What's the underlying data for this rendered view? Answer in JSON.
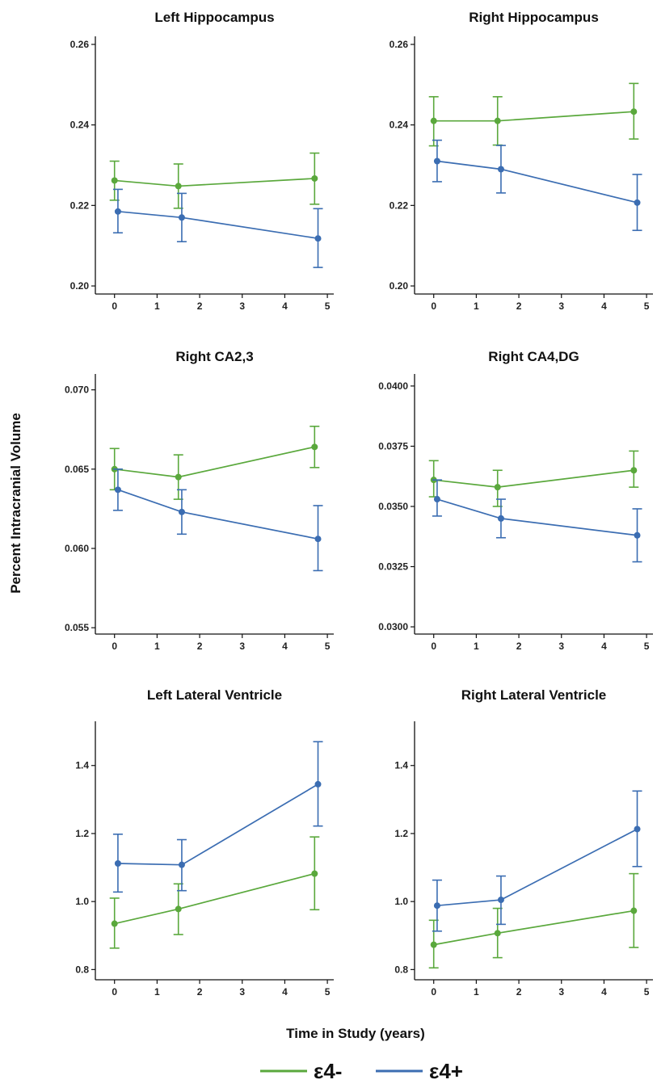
{
  "chart_data": {
    "type": "line",
    "ylabel": "Percent Intracranial Volume",
    "xlabel": "Time in Study (years)",
    "legend": {
      "placement": "bottom",
      "entries": [
        {
          "label": "ε4-",
          "color": "#5aa83c"
        },
        {
          "label": "ε4+",
          "color": "#3b6db2"
        }
      ]
    },
    "panels": [
      {
        "title": "Left Hippocampus",
        "ylim": [
          0.198,
          0.262
        ],
        "yticks": [
          "0.20",
          "0.22",
          "0.24",
          "0.26"
        ],
        "ytick_values": [
          0.2,
          0.22,
          0.24,
          0.26
        ],
        "xlim": [
          -0.45,
          5.15
        ],
        "xticks": [
          "0",
          "1",
          "2",
          "3",
          "4",
          "5"
        ],
        "series": [
          {
            "name": "ε4-",
            "color": "#5aa83c",
            "x": [
              0,
              1.5,
              4.7
            ],
            "y": [
              0.2262,
              0.2248,
              0.2267
            ],
            "lower": [
              0.2213,
              0.2193,
              0.2203
            ],
            "upper": [
              0.231,
              0.2303,
              0.233
            ]
          },
          {
            "name": "ε4+",
            "color": "#3b6db2",
            "x": [
              0.08,
              1.58,
              4.78
            ],
            "y": [
              0.2185,
              0.217,
              0.2118
            ],
            "lower": [
              0.2132,
              0.211,
              0.2046
            ],
            "upper": [
              0.224,
              0.223,
              0.2192
            ]
          }
        ]
      },
      {
        "title": "Right Hippocampus",
        "ylim": [
          0.198,
          0.262
        ],
        "yticks": [
          "0.20",
          "0.22",
          "0.24",
          "0.26"
        ],
        "ytick_values": [
          0.2,
          0.22,
          0.24,
          0.26
        ],
        "xlim": [
          -0.45,
          5.15
        ],
        "xticks": [
          "0",
          "1",
          "2",
          "3",
          "4",
          "5"
        ],
        "series": [
          {
            "name": "ε4-",
            "color": "#5aa83c",
            "x": [
              0,
              1.5,
              4.7
            ],
            "y": [
              0.241,
              0.241,
              0.2433
            ],
            "lower": [
              0.2348,
              0.235,
              0.2365
            ],
            "upper": [
              0.247,
              0.247,
              0.2503
            ]
          },
          {
            "name": "ε4+",
            "color": "#3b6db2",
            "x": [
              0.08,
              1.58,
              4.78
            ],
            "y": [
              0.231,
              0.229,
              0.2207
            ],
            "lower": [
              0.2259,
              0.2231,
              0.2138
            ],
            "upper": [
              0.2362,
              0.2349,
              0.2277
            ]
          }
        ]
      },
      {
        "title": "Right CA2,3",
        "ylim": [
          0.0546,
          0.071
        ],
        "yticks": [
          "0.055",
          "0.060",
          "0.065",
          "0.070"
        ],
        "ytick_values": [
          0.055,
          0.06,
          0.065,
          0.07
        ],
        "xlim": [
          -0.45,
          5.15
        ],
        "xticks": [
          "0",
          "1",
          "2",
          "3",
          "4",
          "5"
        ],
        "series": [
          {
            "name": "ε4-",
            "color": "#5aa83c",
            "x": [
              0,
              1.5,
              4.7
            ],
            "y": [
              0.065,
              0.0645,
              0.0664
            ],
            "lower": [
              0.0637,
              0.0631,
              0.0651
            ],
            "upper": [
              0.0663,
              0.0659,
              0.0677
            ]
          },
          {
            "name": "ε4+",
            "color": "#3b6db2",
            "x": [
              0.08,
              1.58,
              4.78
            ],
            "y": [
              0.0637,
              0.0623,
              0.0606
            ],
            "lower": [
              0.0624,
              0.0609,
              0.0586
            ],
            "upper": [
              0.065,
              0.0637,
              0.0627
            ]
          }
        ]
      },
      {
        "title": "Right CA4,DG",
        "ylim": [
          0.0297,
          0.0405
        ],
        "yticks": [
          "0.0300",
          "0.0325",
          "0.0350",
          "0.0375",
          "0.0400"
        ],
        "ytick_values": [
          0.03,
          0.0325,
          0.035,
          0.0375,
          0.04
        ],
        "xlim": [
          -0.45,
          5.15
        ],
        "xticks": [
          "0",
          "1",
          "2",
          "3",
          "4",
          "5"
        ],
        "series": [
          {
            "name": "ε4-",
            "color": "#5aa83c",
            "x": [
              0,
              1.5,
              4.7
            ],
            "y": [
              0.0361,
              0.0358,
              0.0365
            ],
            "lower": [
              0.0354,
              0.035,
              0.0358
            ],
            "upper": [
              0.0369,
              0.0365,
              0.0373
            ]
          },
          {
            "name": "ε4+",
            "color": "#3b6db2",
            "x": [
              0.08,
              1.58,
              4.78
            ],
            "y": [
              0.0353,
              0.0345,
              0.0338
            ],
            "lower": [
              0.0346,
              0.0337,
              0.0327
            ],
            "upper": [
              0.0361,
              0.0353,
              0.0349
            ]
          }
        ]
      },
      {
        "title": "Left Lateral Ventricle",
        "ylim": [
          0.77,
          1.53
        ],
        "yticks": [
          "0.8",
          "1.0",
          "1.2",
          "1.4"
        ],
        "ytick_values": [
          0.8,
          1.0,
          1.2,
          1.4
        ],
        "xlim": [
          -0.45,
          5.15
        ],
        "xticks": [
          "0",
          "1",
          "2",
          "3",
          "4",
          "5"
        ],
        "series": [
          {
            "name": "ε4-",
            "color": "#5aa83c",
            "x": [
              0,
              1.5,
              4.7
            ],
            "y": [
              0.935,
              0.978,
              1.082
            ],
            "lower": [
              0.863,
              0.903,
              0.976
            ],
            "upper": [
              1.01,
              1.052,
              1.19
            ]
          },
          {
            "name": "ε4+",
            "color": "#3b6db2",
            "x": [
              0.08,
              1.58,
              4.78
            ],
            "y": [
              1.112,
              1.108,
              1.345
            ],
            "lower": [
              1.028,
              1.032,
              1.222
            ],
            "upper": [
              1.198,
              1.182,
              1.47
            ]
          }
        ]
      },
      {
        "title": "Right Lateral Ventricle",
        "ylim": [
          0.77,
          1.53
        ],
        "yticks": [
          "0.8",
          "1.0",
          "1.2",
          "1.4"
        ],
        "ytick_values": [
          0.8,
          1.0,
          1.2,
          1.4
        ],
        "xlim": [
          -0.45,
          5.15
        ],
        "xticks": [
          "0",
          "1",
          "2",
          "3",
          "4",
          "5"
        ],
        "series": [
          {
            "name": "ε4-",
            "color": "#5aa83c",
            "x": [
              0,
              1.5,
              4.7
            ],
            "y": [
              0.873,
              0.907,
              0.973
            ],
            "lower": [
              0.805,
              0.835,
              0.865
            ],
            "upper": [
              0.945,
              0.98,
              1.082
            ]
          },
          {
            "name": "ε4+",
            "color": "#3b6db2",
            "x": [
              0.08,
              1.58,
              4.78
            ],
            "y": [
              0.988,
              1.005,
              1.213
            ],
            "lower": [
              0.913,
              0.933,
              1.103
            ],
            "upper": [
              1.063,
              1.075,
              1.325
            ]
          }
        ]
      }
    ]
  }
}
